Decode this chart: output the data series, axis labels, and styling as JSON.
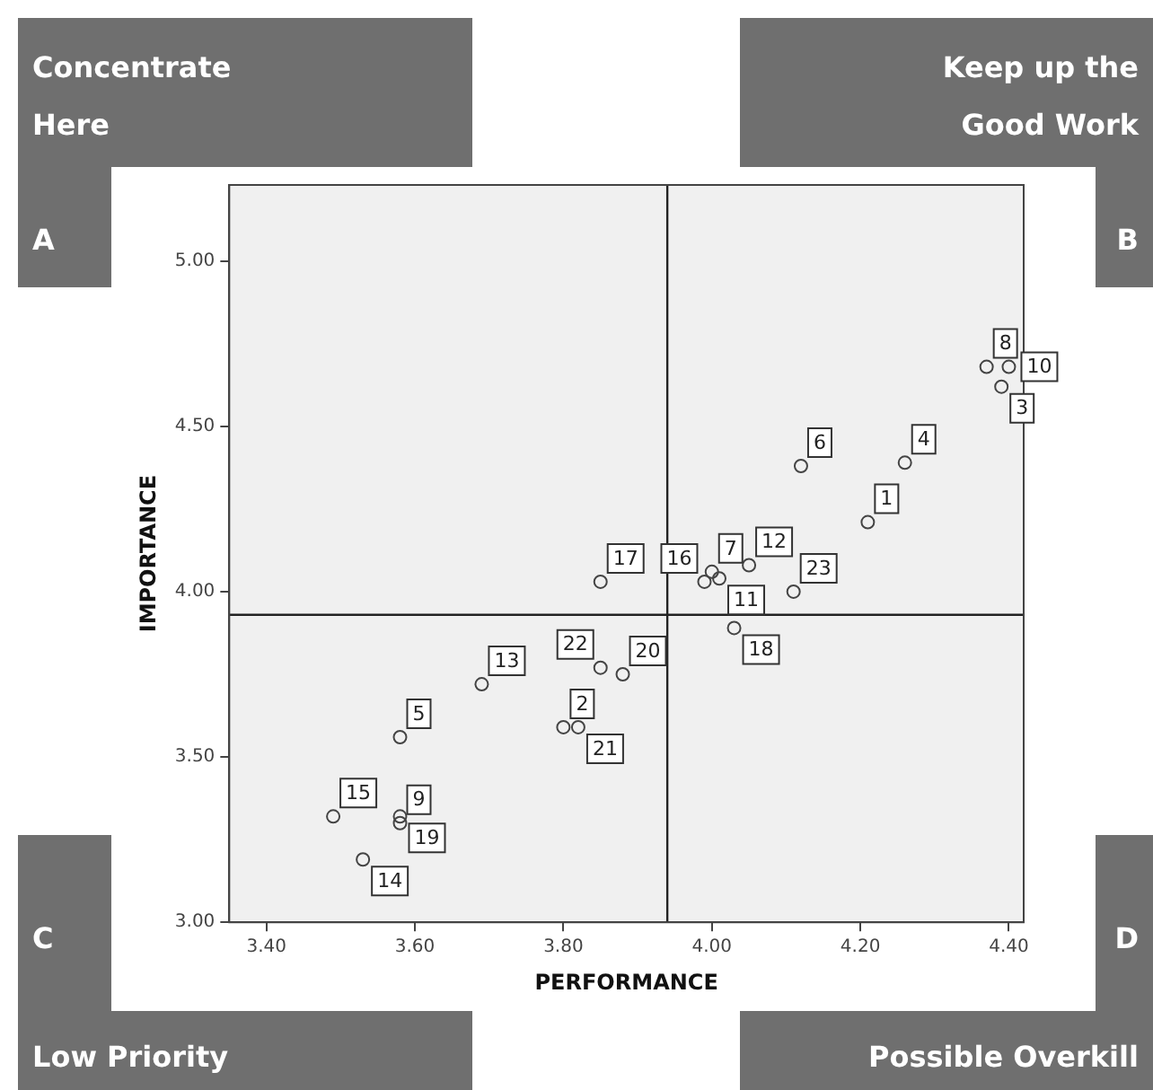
{
  "chart_data": {
    "type": "scatter",
    "xlabel": "PERFORMANCE",
    "ylabel": "IMPORTANCE",
    "xlim": [
      3.35,
      4.42
    ],
    "ylim": [
      3.0,
      5.23
    ],
    "xticks": [
      {
        "value": 3.4,
        "label": "3.40"
      },
      {
        "value": 3.6,
        "label": "3.60"
      },
      {
        "value": 3.8,
        "label": "3.80"
      },
      {
        "value": 4.0,
        "label": "4.00"
      },
      {
        "value": 4.2,
        "label": "4.20"
      },
      {
        "value": 4.4,
        "label": "4.40"
      }
    ],
    "yticks": [
      {
        "value": 3.0,
        "label": "3.00"
      },
      {
        "value": 3.5,
        "label": "3.50"
      },
      {
        "value": 4.0,
        "label": "4.00"
      },
      {
        "value": 4.5,
        "label": "4.50"
      },
      {
        "value": 5.0,
        "label": "5.00"
      }
    ],
    "grid": false,
    "legend": false,
    "marker": "circle",
    "series": [
      {
        "color": "#444444",
        "x": [
          4.21,
          3.8,
          4.39,
          4.26,
          3.58,
          4.12,
          4.0,
          4.37,
          3.58,
          4.4,
          4.01,
          4.05,
          3.69,
          3.53,
          3.49,
          3.99,
          3.85,
          4.03,
          3.58,
          3.88,
          3.82,
          3.85,
          4.11
        ],
        "values": [
          4.21,
          3.59,
          4.62,
          4.39,
          3.56,
          4.38,
          4.06,
          4.68,
          3.3,
          4.68,
          4.04,
          4.08,
          3.72,
          3.19,
          3.32,
          4.03,
          4.03,
          3.89,
          3.32,
          3.75,
          3.59,
          3.77,
          4.0
        ]
      }
    ],
    "ref_lines": [
      {
        "axis": "x",
        "value": 3.94,
        "color": "#222222"
      },
      {
        "axis": "y",
        "value": 3.93,
        "color": "#222222"
      }
    ],
    "annotations": [
      "Concentrate Here",
      "A",
      "Keep up the Good Work",
      "B",
      "C",
      "Low Priority",
      "D",
      "Possible Overkill",
      {
        "text": "1",
        "x": 4.21,
        "y": 4.21
      },
      {
        "text": "2",
        "x": 3.8,
        "y": 3.59
      },
      {
        "text": "3",
        "x": 4.39,
        "y": 4.62
      },
      {
        "text": "4",
        "x": 4.26,
        "y": 4.39
      },
      {
        "text": "5",
        "x": 3.58,
        "y": 3.56
      },
      {
        "text": "6",
        "x": 4.12,
        "y": 4.38
      },
      {
        "text": "7",
        "x": 4.0,
        "y": 4.06
      },
      {
        "text": "8",
        "x": 4.37,
        "y": 4.68
      },
      {
        "text": "9",
        "x": 3.58,
        "y": 3.3
      },
      {
        "text": "10",
        "x": 4.4,
        "y": 4.68
      },
      {
        "text": "11",
        "x": 4.01,
        "y": 4.04
      },
      {
        "text": "12",
        "x": 4.05,
        "y": 4.08
      },
      {
        "text": "13",
        "x": 3.69,
        "y": 3.72
      },
      {
        "text": "14",
        "x": 3.53,
        "y": 3.19
      },
      {
        "text": "15",
        "x": 3.49,
        "y": 3.32
      },
      {
        "text": "16",
        "x": 3.99,
        "y": 4.03
      },
      {
        "text": "17",
        "x": 3.85,
        "y": 4.03
      },
      {
        "text": "18",
        "x": 4.03,
        "y": 3.89
      },
      {
        "text": "19",
        "x": 3.58,
        "y": 3.32
      },
      {
        "text": "20",
        "x": 3.88,
        "y": 3.75
      },
      {
        "text": "21",
        "x": 3.82,
        "y": 3.59
      },
      {
        "text": "22",
        "x": 3.85,
        "y": 3.77
      },
      {
        "text": "23",
        "x": 4.11,
        "y": 4.0
      }
    ]
  }
}
